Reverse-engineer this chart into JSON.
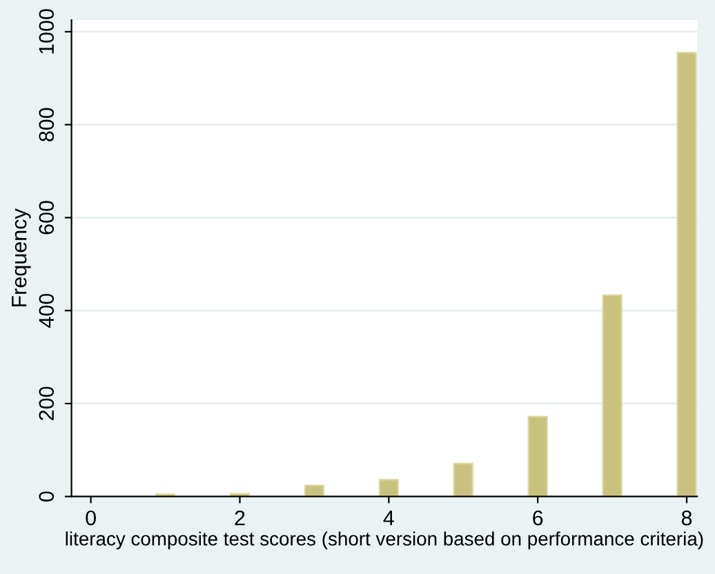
{
  "chart_data": {
    "type": "bar",
    "xlabel": "literacy composite test scores (short version based on performance criteria)",
    "ylabel": "Frequency",
    "x": [
      1,
      2,
      3,
      4,
      5,
      6,
      7,
      8
    ],
    "values": [
      5,
      6,
      24,
      36,
      71,
      172,
      433,
      955
    ],
    "color": "#c9c27f",
    "xlim": [
      -0.26,
      8.14
    ],
    "xticks": [
      0,
      2,
      4,
      6,
      8
    ],
    "ylim": [
      0,
      1025
    ],
    "yticks": [
      0,
      200,
      400,
      600,
      800,
      1000
    ],
    "grid": "y"
  }
}
